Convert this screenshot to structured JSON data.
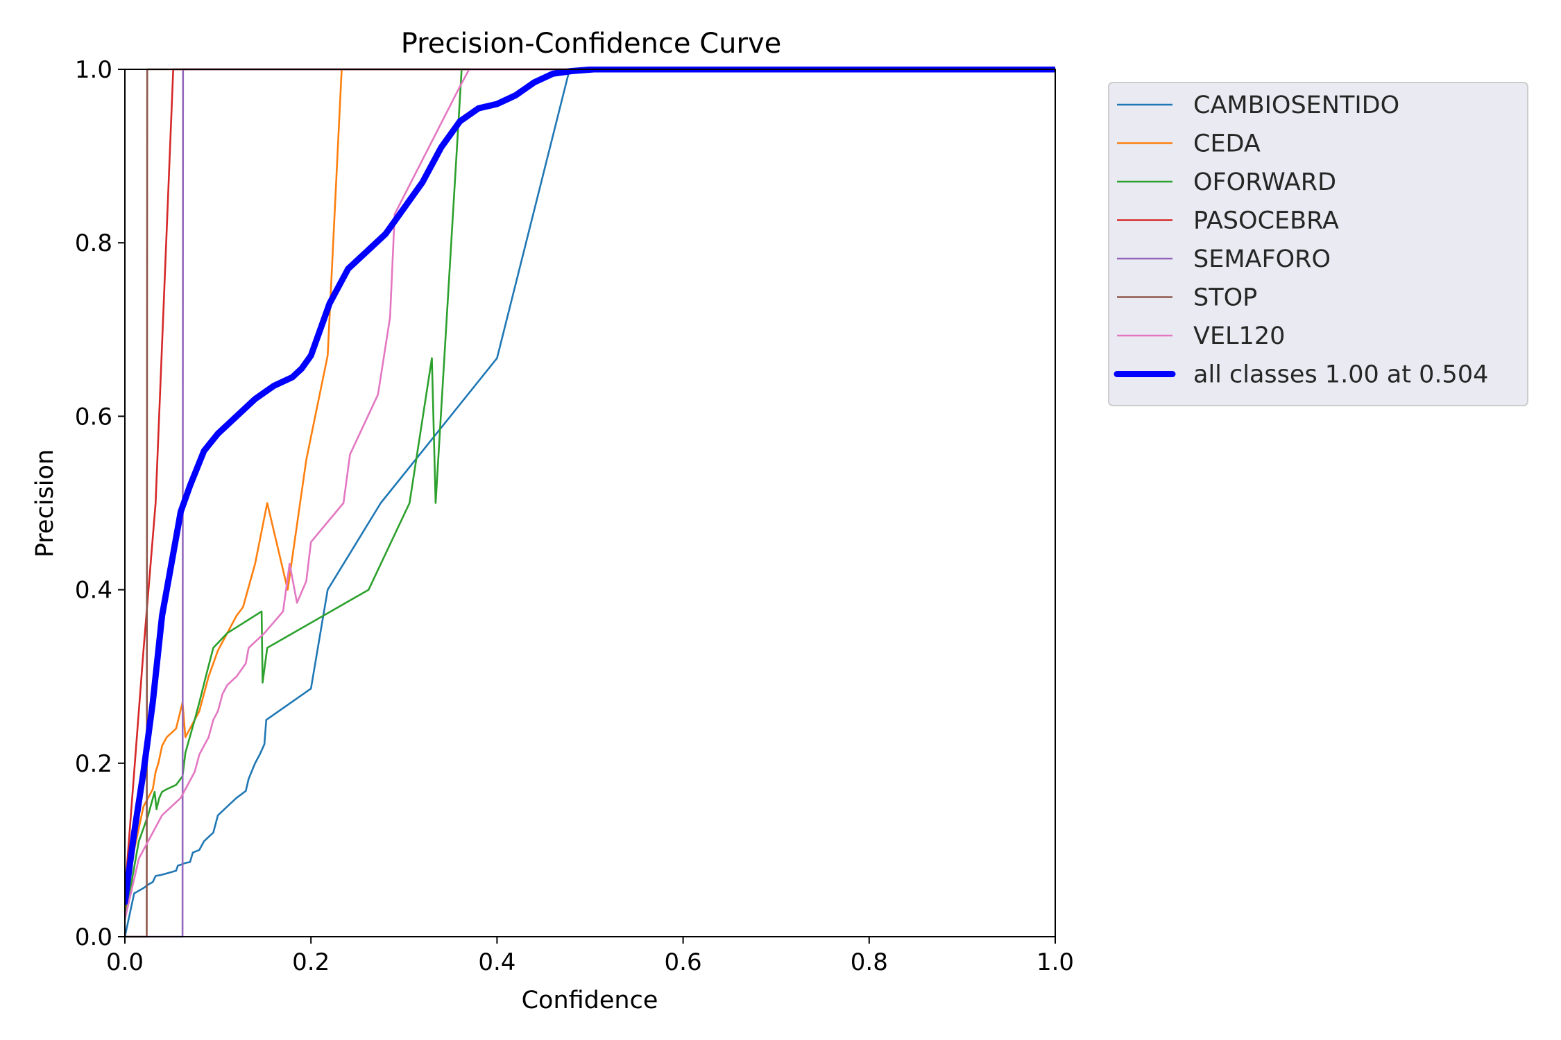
{
  "chart_data": {
    "type": "line",
    "title": "Precision-Confidence Curve",
    "xlabel": "Confidence",
    "ylabel": "Precision",
    "xlim": [
      0,
      1
    ],
    "ylim": [
      0,
      1
    ],
    "xticks": [
      "0.0",
      "0.2",
      "0.4",
      "0.6",
      "0.8",
      "1.0"
    ],
    "yticks": [
      "0.0",
      "0.2",
      "0.4",
      "0.6",
      "0.8",
      "1.0"
    ],
    "grid": false,
    "legend_position": "outside-right-top",
    "series": [
      {
        "name": "CAMBIOSENTIDO",
        "color": "#1f77b4",
        "x": [
          0.0,
          0.01,
          0.02,
          0.025,
          0.03,
          0.033,
          0.038,
          0.045,
          0.055,
          0.057,
          0.06,
          0.065,
          0.07,
          0.073,
          0.08,
          0.085,
          0.09,
          0.095,
          0.1,
          0.11,
          0.115,
          0.12,
          0.13,
          0.133,
          0.14,
          0.145,
          0.15,
          0.152,
          0.2,
          0.218,
          0.275,
          0.4,
          0.478,
          1.0
        ],
        "y": [
          0.0,
          0.05,
          0.056,
          0.06,
          0.063,
          0.07,
          0.071,
          0.073,
          0.076,
          0.082,
          0.083,
          0.085,
          0.086,
          0.097,
          0.1,
          0.11,
          0.115,
          0.12,
          0.14,
          0.15,
          0.155,
          0.16,
          0.168,
          0.182,
          0.2,
          0.21,
          0.222,
          0.25,
          0.286,
          0.4,
          0.5,
          0.667,
          1.0,
          1.0
        ]
      },
      {
        "name": "CEDA",
        "color": "#ff7f0e",
        "x": [
          0.0,
          0.01,
          0.02,
          0.03,
          0.033,
          0.036,
          0.04,
          0.045,
          0.055,
          0.062,
          0.065,
          0.08,
          0.09,
          0.1,
          0.11,
          0.12,
          0.127,
          0.14,
          0.153,
          0.175,
          0.195,
          0.218,
          0.233,
          1.0
        ],
        "y": [
          0.03,
          0.1,
          0.15,
          0.17,
          0.19,
          0.2,
          0.22,
          0.23,
          0.24,
          0.27,
          0.23,
          0.26,
          0.3,
          0.33,
          0.35,
          0.37,
          0.38,
          0.43,
          0.5,
          0.4,
          0.55,
          0.67,
          1.0,
          1.0
        ]
      },
      {
        "name": "OFORWARD",
        "color": "#2ca02c",
        "x": [
          0.0,
          0.015,
          0.025,
          0.032,
          0.034,
          0.037,
          0.04,
          0.045,
          0.055,
          0.062,
          0.065,
          0.075,
          0.08,
          0.087,
          0.095,
          0.11,
          0.147,
          0.148,
          0.153,
          0.262,
          0.306,
          0.33,
          0.334,
          0.362,
          1.0
        ],
        "y": [
          0.02,
          0.11,
          0.14,
          0.167,
          0.147,
          0.16,
          0.167,
          0.17,
          0.175,
          0.185,
          0.212,
          0.25,
          0.27,
          0.3,
          0.333,
          0.35,
          0.375,
          0.293,
          0.333,
          0.4,
          0.5,
          0.667,
          0.5,
          1.0,
          1.0
        ]
      },
      {
        "name": "PASOCEBRA",
        "color": "#d62728",
        "x": [
          0.0,
          0.02,
          0.033,
          0.052,
          1.0
        ],
        "y": [
          0.05,
          0.33,
          0.5,
          1.0,
          1.0
        ]
      },
      {
        "name": "SEMAFORO",
        "color": "#9467bd",
        "x": [
          0.0,
          0.062,
          0.0625,
          1.0
        ],
        "y": [
          0.0,
          0.0,
          1.0,
          1.0
        ]
      },
      {
        "name": "STOP",
        "color": "#8c564b",
        "x": [
          0.0,
          0.0235,
          0.024,
          1.0
        ],
        "y": [
          0.0,
          0.0,
          1.0,
          1.0
        ]
      },
      {
        "name": "VEL120",
        "color": "#e377c2",
        "x": [
          0.0,
          0.015,
          0.02,
          0.025,
          0.03,
          0.035,
          0.04,
          0.05,
          0.06,
          0.065,
          0.07,
          0.075,
          0.08,
          0.085,
          0.09,
          0.095,
          0.1,
          0.105,
          0.11,
          0.12,
          0.13,
          0.133,
          0.15,
          0.17,
          0.177,
          0.185,
          0.195,
          0.2,
          0.235,
          0.242,
          0.272,
          0.285,
          0.29,
          0.36,
          0.37,
          1.0
        ],
        "y": [
          0.02,
          0.09,
          0.1,
          0.11,
          0.12,
          0.13,
          0.14,
          0.15,
          0.16,
          0.17,
          0.18,
          0.19,
          0.21,
          0.22,
          0.23,
          0.25,
          0.26,
          0.28,
          0.29,
          0.3,
          0.315,
          0.333,
          0.35,
          0.375,
          0.43,
          0.385,
          0.41,
          0.455,
          0.5,
          0.556,
          0.625,
          0.714,
          0.833,
          0.98,
          1.0,
          1.0
        ]
      },
      {
        "name": "all classes 1.00 at 0.504",
        "color": "#0000ff",
        "thick": true,
        "x": [
          0.0,
          0.01,
          0.02,
          0.03,
          0.04,
          0.05,
          0.06,
          0.07,
          0.085,
          0.1,
          0.12,
          0.14,
          0.16,
          0.18,
          0.19,
          0.2,
          0.21,
          0.22,
          0.24,
          0.26,
          0.28,
          0.3,
          0.32,
          0.34,
          0.36,
          0.38,
          0.4,
          0.42,
          0.44,
          0.46,
          0.48,
          0.504,
          1.0
        ],
        "y": [
          0.04,
          0.12,
          0.19,
          0.27,
          0.37,
          0.43,
          0.49,
          0.52,
          0.56,
          0.58,
          0.6,
          0.62,
          0.635,
          0.645,
          0.655,
          0.67,
          0.7,
          0.73,
          0.77,
          0.79,
          0.81,
          0.84,
          0.87,
          0.91,
          0.94,
          0.955,
          0.96,
          0.97,
          0.985,
          0.995,
          0.998,
          1.0,
          1.0
        ]
      }
    ]
  }
}
